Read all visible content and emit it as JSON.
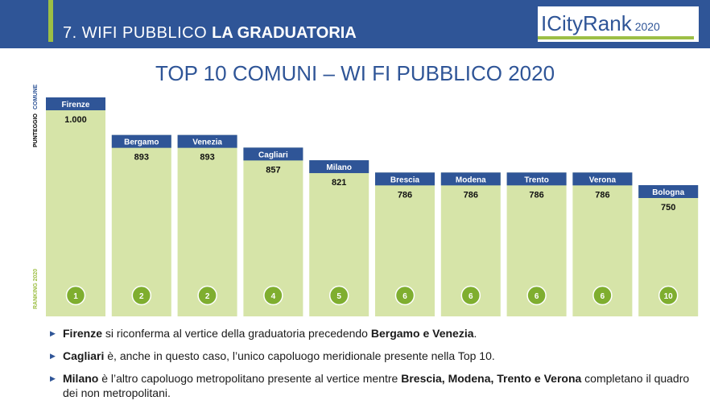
{
  "header": {
    "section": "7. WIFI PUBBLICO",
    "title": "LA GRADUATORIA",
    "brand": "ICityRank",
    "brand_year": "2020"
  },
  "slide_title": "TOP 10 COMUNI – WI FI PUBBLICO 2020",
  "axis_labels": {
    "comune": "COMUNE",
    "punteggio": "PUNTEGGIO",
    "ranking": "RANKING 2020"
  },
  "colors": {
    "header_bg": "#2f5597",
    "accent_green": "#9dbf45",
    "bar_fill": "#d6e4a8",
    "label_bg": "#2f5597",
    "rank_circle": "#7fae2f"
  },
  "chart_data": {
    "type": "bar",
    "categories": [
      "Firenze",
      "Bergamo",
      "Venezia",
      "Cagliari",
      "Milano",
      "Brescia",
      "Modena",
      "Trento",
      "Verona",
      "Bologna"
    ],
    "values": [
      1000,
      893,
      893,
      857,
      821,
      786,
      786,
      786,
      786,
      750
    ],
    "value_labels": [
      "1.000",
      "893",
      "893",
      "857",
      "821",
      "786",
      "786",
      "786",
      "786",
      "750"
    ],
    "ranks": [
      "1",
      "2",
      "2",
      "4",
      "5",
      "6",
      "6",
      "6",
      "6",
      "10"
    ]
  },
  "bullets": [
    {
      "parts": [
        {
          "text": "Firenze",
          "bold": true
        },
        {
          "text": " si riconferma al vertice della graduatoria precedendo ",
          "bold": false
        },
        {
          "text": "Bergamo e Venezia",
          "bold": true
        },
        {
          "text": ".",
          "bold": false
        }
      ]
    },
    {
      "parts": [
        {
          "text": "Cagliari",
          "bold": true
        },
        {
          "text": " è, anche in questo caso, l’unico capoluogo meridionale presente nella Top 10.",
          "bold": false
        }
      ]
    },
    {
      "parts": [
        {
          "text": "Milano",
          "bold": true
        },
        {
          "text": " è l’altro capoluogo metropolitano presente al vertice mentre ",
          "bold": false
        },
        {
          "text": "Brescia, Modena, Trento e Verona",
          "bold": true
        },
        {
          "text": " completano il quadro dei non metropolitani.",
          "bold": false
        }
      ]
    }
  ]
}
